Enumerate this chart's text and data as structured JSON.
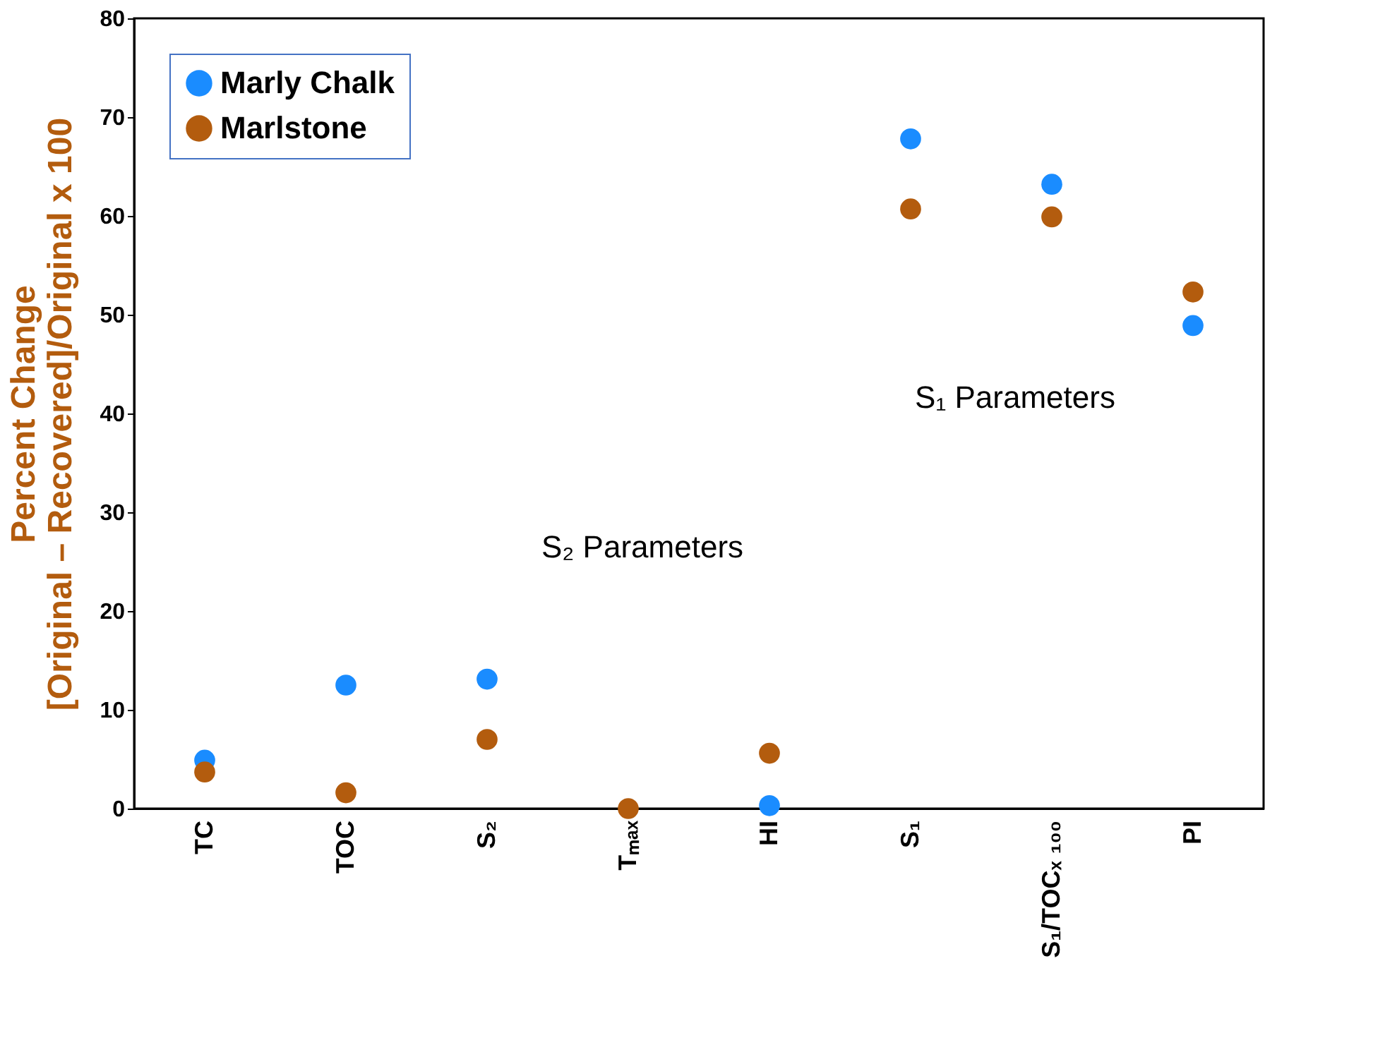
{
  "chart_data": {
    "type": "scatter",
    "ylabel": "Percent Change\n[Original – Recovered]/Original x 100",
    "categories": [
      "TC",
      "TOC",
      "S₂",
      "Tₘₐₓ",
      "HI",
      "S₁",
      "S₁/TOCₓ ₁₀₀",
      "PI"
    ],
    "series": [
      {
        "name": "Marly Chalk",
        "color": "#1a8cff",
        "values": [
          4.9,
          12.5,
          13.1,
          null,
          0.3,
          67.8,
          63.2,
          48.9
        ]
      },
      {
        "name": "Marlstone",
        "color": "#b35c0e",
        "values": [
          3.7,
          1.6,
          7.0,
          0,
          5.6,
          60.7,
          59.9,
          52.3
        ]
      }
    ],
    "ylim": [
      0,
      80
    ],
    "yticks": [
      0,
      10,
      20,
      30,
      40,
      50,
      60,
      70,
      80
    ],
    "annotations": [
      "S₂ Parameters",
      "S₁ Parameters"
    ],
    "legend": "top left",
    "marker": "circle",
    "grid": false
  }
}
